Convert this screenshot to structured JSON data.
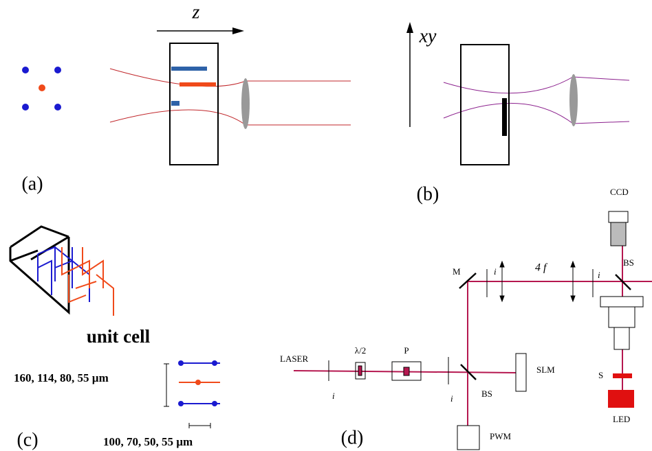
{
  "panel_a": {
    "label": "(a)",
    "axis_label": "z"
  },
  "panel_b": {
    "label": "(b)",
    "axis_label": "xy"
  },
  "panel_c": {
    "label": "(c)",
    "title": "unit cell",
    "vertical_spacings": "160, 114, 80, 55 µm",
    "horizontal_spacings": "100, 70, 50, 55  µm"
  },
  "panel_d": {
    "label": "(d)",
    "laser": "LASER",
    "half_wave_plate": "λ/2",
    "polarizer": "P",
    "slm": "SLM",
    "power_meter": "PWM",
    "mirror": "M",
    "beam_splitters": [
      "BS",
      "BS"
    ],
    "telescope": "4 f",
    "irises": [
      "i",
      "i",
      "i",
      "i"
    ],
    "camera": "CCD",
    "stop": "S",
    "led": "LED"
  }
}
